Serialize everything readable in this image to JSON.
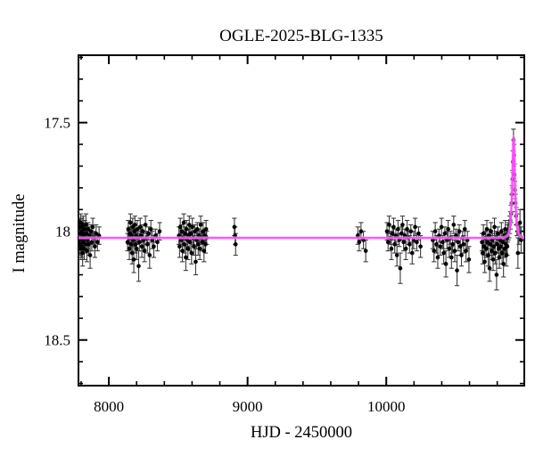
{
  "chart_data": {
    "type": "scatter",
    "title": "OGLE-2025-BLG-1335",
    "xlabel": "HJD - 2450000",
    "ylabel": "I magnitude",
    "xlim": [
      7781,
      10995
    ],
    "ylim_mag_top_to_bottom": [
      17.19,
      18.71
    ],
    "y_axis_inverted": true,
    "grid": false,
    "legend": "none",
    "x_major_ticks": [
      {
        "value": 8000,
        "label": "8000"
      },
      {
        "value": 9000,
        "label": "9000"
      },
      {
        "value": 10000,
        "label": "10000"
      }
    ],
    "x_minor_step": 200,
    "y_major_ticks": [
      {
        "value": 17.5,
        "label": "17.5"
      },
      {
        "value": 18,
        "label": "18"
      },
      {
        "value": 18.5,
        "label": "18.5"
      }
    ],
    "y_minor_step": 0.1,
    "baseline_mag": 18.03,
    "model": {
      "kind": "paczynski-point-lens",
      "t0": 10918,
      "tE_days": 13,
      "u0": 0.8,
      "baseline_mag": 18.03,
      "peak_mag": 17.57
    },
    "colors": {
      "background": "#ffffff",
      "frame": "#000000",
      "point": "#000000",
      "errorbar": "#3c3c3c",
      "model_core": "#ff46ff",
      "model_glow": "#ff9bff"
    },
    "points_format": [
      "hjd_minus_2450000",
      "i_mag",
      "mag_error"
    ],
    "points": [
      [
        7789,
        18.04,
        0.04
      ],
      [
        7791,
        17.98,
        0.04
      ],
      [
        7793,
        18.06,
        0.05
      ],
      [
        7795,
        18.01,
        0.03
      ],
      [
        7797,
        17.96,
        0.04
      ],
      [
        7799,
        18.08,
        0.05
      ],
      [
        7801,
        18.03,
        0.03
      ],
      [
        7803,
        18.0,
        0.04
      ],
      [
        7805,
        18.07,
        0.05
      ],
      [
        7807,
        17.98,
        0.04
      ],
      [
        7809,
        18.04,
        0.03
      ],
      [
        7811,
        18.1,
        0.06
      ],
      [
        7813,
        18.01,
        0.03
      ],
      [
        7815,
        17.97,
        0.04
      ],
      [
        7817,
        18.05,
        0.04
      ],
      [
        7820,
        18.02,
        0.03
      ],
      [
        7823,
        18.08,
        0.05
      ],
      [
        7826,
        17.99,
        0.04
      ],
      [
        7829,
        18.03,
        0.03
      ],
      [
        7832,
        18.06,
        0.04
      ],
      [
        7835,
        17.97,
        0.05
      ],
      [
        7838,
        18.01,
        0.03
      ],
      [
        7842,
        18.09,
        0.05
      ],
      [
        7846,
        18.04,
        0.04
      ],
      [
        7850,
        17.99,
        0.03
      ],
      [
        7855,
        18.06,
        0.05
      ],
      [
        7860,
        18.02,
        0.04
      ],
      [
        7865,
        18.11,
        0.06
      ],
      [
        7871,
        18.0,
        0.03
      ],
      [
        7877,
        18.05,
        0.04
      ],
      [
        7884,
        17.98,
        0.04
      ],
      [
        7891,
        18.03,
        0.03
      ],
      [
        7899,
        18.07,
        0.05
      ],
      [
        7908,
        18.01,
        0.04
      ],
      [
        7918,
        18.05,
        0.04
      ],
      [
        7930,
        18.02,
        0.04
      ],
      [
        8135,
        18.05,
        0.04
      ],
      [
        8140,
        17.99,
        0.04
      ],
      [
        8144,
        18.03,
        0.03
      ],
      [
        8148,
        18.08,
        0.05
      ],
      [
        8152,
        18.01,
        0.03
      ],
      [
        8156,
        17.96,
        0.04
      ],
      [
        8160,
        18.06,
        0.04
      ],
      [
        8164,
        18.02,
        0.03
      ],
      [
        8168,
        18.1,
        0.05
      ],
      [
        8172,
        17.98,
        0.04
      ],
      [
        8176,
        18.04,
        0.03
      ],
      [
        8180,
        18.13,
        0.06
      ],
      [
        8184,
        18.0,
        0.03
      ],
      [
        8188,
        17.97,
        0.04
      ],
      [
        8192,
        18.06,
        0.04
      ],
      [
        8196,
        18.02,
        0.03
      ],
      [
        8200,
        18.08,
        0.05
      ],
      [
        8205,
        17.99,
        0.04
      ],
      [
        8210,
        18.03,
        0.03
      ],
      [
        8215,
        18.16,
        0.07
      ],
      [
        8220,
        18.05,
        0.04
      ],
      [
        8226,
        17.98,
        0.04
      ],
      [
        8232,
        18.02,
        0.03
      ],
      [
        8238,
        18.07,
        0.05
      ],
      [
        8244,
        18.0,
        0.03
      ],
      [
        8250,
        18.04,
        0.04
      ],
      [
        8257,
        18.09,
        0.05
      ],
      [
        8264,
        17.97,
        0.04
      ],
      [
        8271,
        18.03,
        0.03
      ],
      [
        8278,
        18.06,
        0.04
      ],
      [
        8286,
        18.01,
        0.03
      ],
      [
        8294,
        18.11,
        0.06
      ],
      [
        8303,
        17.99,
        0.04
      ],
      [
        8313,
        18.04,
        0.04
      ],
      [
        8324,
        18.07,
        0.05
      ],
      [
        8336,
        18.02,
        0.03
      ],
      [
        8350,
        18.05,
        0.04
      ],
      [
        8366,
        18.0,
        0.04
      ],
      [
        8505,
        18.02,
        0.04
      ],
      [
        8510,
        18.07,
        0.05
      ],
      [
        8515,
        17.98,
        0.04
      ],
      [
        8520,
        18.04,
        0.03
      ],
      [
        8525,
        18.0,
        0.03
      ],
      [
        8530,
        18.09,
        0.05
      ],
      [
        8535,
        18.03,
        0.03
      ],
      [
        8540,
        17.96,
        0.04
      ],
      [
        8545,
        18.06,
        0.04
      ],
      [
        8550,
        18.01,
        0.03
      ],
      [
        8555,
        18.12,
        0.06
      ],
      [
        8560,
        17.99,
        0.04
      ],
      [
        8565,
        18.04,
        0.03
      ],
      [
        8570,
        18.08,
        0.05
      ],
      [
        8575,
        18.02,
        0.03
      ],
      [
        8580,
        17.97,
        0.04
      ],
      [
        8585,
        18.05,
        0.04
      ],
      [
        8590,
        18.01,
        0.03
      ],
      [
        8596,
        18.1,
        0.05
      ],
      [
        8602,
        17.98,
        0.04
      ],
      [
        8608,
        18.03,
        0.03
      ],
      [
        8614,
        18.07,
        0.04
      ],
      [
        8620,
        18.0,
        0.03
      ],
      [
        8626,
        18.14,
        0.06
      ],
      [
        8632,
        18.04,
        0.04
      ],
      [
        8638,
        17.99,
        0.03
      ],
      [
        8644,
        18.06,
        0.05
      ],
      [
        8650,
        18.02,
        0.03
      ],
      [
        8656,
        18.08,
        0.05
      ],
      [
        8662,
        17.97,
        0.04
      ],
      [
        8668,
        18.03,
        0.03
      ],
      [
        8674,
        18.05,
        0.04
      ],
      [
        8680,
        18.0,
        0.04
      ],
      [
        8686,
        18.09,
        0.05
      ],
      [
        8692,
        18.02,
        0.03
      ],
      [
        8697,
        18.06,
        0.04
      ],
      [
        8701,
        17.99,
        0.04
      ],
      [
        8705,
        18.03,
        0.03
      ],
      [
        8905,
        17.98,
        0.04
      ],
      [
        8910,
        18.02,
        0.04
      ],
      [
        8914,
        18.06,
        0.05
      ],
      [
        9795,
        18.02,
        0.04
      ],
      [
        9805,
        18.05,
        0.04
      ],
      [
        9818,
        18.0,
        0.04
      ],
      [
        9835,
        18.04,
        0.04
      ],
      [
        9852,
        18.09,
        0.05
      ],
      [
        10005,
        18.0,
        0.04
      ],
      [
        10013,
        18.05,
        0.04
      ],
      [
        10021,
        17.97,
        0.04
      ],
      [
        10029,
        18.03,
        0.03
      ],
      [
        10037,
        18.08,
        0.05
      ],
      [
        10045,
        18.01,
        0.03
      ],
      [
        10053,
        17.98,
        0.04
      ],
      [
        10061,
        18.06,
        0.04
      ],
      [
        10069,
        18.02,
        0.03
      ],
      [
        10077,
        18.11,
        0.05
      ],
      [
        10085,
        17.99,
        0.04
      ],
      [
        10093,
        18.04,
        0.03
      ],
      [
        10101,
        18.17,
        0.07
      ],
      [
        10109,
        18.01,
        0.03
      ],
      [
        10117,
        17.97,
        0.04
      ],
      [
        10125,
        18.05,
        0.04
      ],
      [
        10133,
        18.02,
        0.03
      ],
      [
        10141,
        18.08,
        0.05
      ],
      [
        10150,
        17.99,
        0.04
      ],
      [
        10159,
        18.03,
        0.03
      ],
      [
        10168,
        18.06,
        0.04
      ],
      [
        10177,
        18.0,
        0.03
      ],
      [
        10187,
        18.1,
        0.05
      ],
      [
        10197,
        18.04,
        0.04
      ],
      [
        10208,
        17.98,
        0.04
      ],
      [
        10220,
        18.05,
        0.04
      ],
      [
        10233,
        18.01,
        0.03
      ],
      [
        10247,
        18.07,
        0.05
      ],
      [
        10335,
        18.04,
        0.04
      ],
      [
        10344,
        18.09,
        0.05
      ],
      [
        10353,
        18.0,
        0.04
      ],
      [
        10362,
        18.06,
        0.04
      ],
      [
        10371,
        18.12,
        0.05
      ],
      [
        10380,
        18.02,
        0.03
      ],
      [
        10389,
        18.07,
        0.04
      ],
      [
        10398,
        17.98,
        0.04
      ],
      [
        10406,
        18.05,
        0.03
      ],
      [
        10414,
        18.1,
        0.05
      ],
      [
        10422,
        18.01,
        0.03
      ],
      [
        10430,
        18.15,
        0.06
      ],
      [
        10438,
        18.04,
        0.04
      ],
      [
        10446,
        17.99,
        0.04
      ],
      [
        10454,
        18.08,
        0.04
      ],
      [
        10462,
        18.03,
        0.03
      ],
      [
        10470,
        18.12,
        0.05
      ],
      [
        10478,
        18.06,
        0.04
      ],
      [
        10486,
        17.97,
        0.04
      ],
      [
        10494,
        18.09,
        0.05
      ],
      [
        10502,
        18.02,
        0.03
      ],
      [
        10510,
        18.18,
        0.07
      ],
      [
        10518,
        18.05,
        0.04
      ],
      [
        10526,
        18.0,
        0.03
      ],
      [
        10534,
        18.07,
        0.04
      ],
      [
        10542,
        18.11,
        0.05
      ],
      [
        10550,
        18.03,
        0.03
      ],
      [
        10558,
        18.06,
        0.04
      ],
      [
        10566,
        17.99,
        0.04
      ],
      [
        10575,
        18.09,
        0.05
      ],
      [
        10585,
        18.04,
        0.04
      ],
      [
        10596,
        18.13,
        0.06
      ],
      [
        10690,
        18.05,
        0.04
      ],
      [
        10695,
        18.1,
        0.05
      ],
      [
        10700,
        18.01,
        0.04
      ],
      [
        10705,
        18.07,
        0.04
      ],
      [
        10710,
        18.14,
        0.05
      ],
      [
        10715,
        18.03,
        0.03
      ],
      [
        10720,
        18.08,
        0.04
      ],
      [
        10725,
        17.99,
        0.04
      ],
      [
        10730,
        18.05,
        0.03
      ],
      [
        10735,
        18.11,
        0.05
      ],
      [
        10740,
        18.02,
        0.03
      ],
      [
        10745,
        18.17,
        0.06
      ],
      [
        10750,
        18.06,
        0.04
      ],
      [
        10755,
        18.0,
        0.04
      ],
      [
        10760,
        18.09,
        0.04
      ],
      [
        10765,
        18.04,
        0.03
      ],
      [
        10770,
        18.13,
        0.05
      ],
      [
        10775,
        18.07,
        0.04
      ],
      [
        10780,
        17.98,
        0.04
      ],
      [
        10785,
        18.1,
        0.05
      ],
      [
        10790,
        18.03,
        0.03
      ],
      [
        10795,
        18.2,
        0.07
      ],
      [
        10800,
        18.06,
        0.04
      ],
      [
        10805,
        18.01,
        0.03
      ],
      [
        10810,
        18.08,
        0.04
      ],
      [
        10815,
        18.12,
        0.05
      ],
      [
        10820,
        18.04,
        0.03
      ],
      [
        10825,
        18.07,
        0.04
      ],
      [
        10830,
        18.0,
        0.04
      ],
      [
        10835,
        18.1,
        0.05
      ],
      [
        10840,
        18.05,
        0.04
      ],
      [
        10845,
        18.15,
        0.06
      ],
      [
        10850,
        18.02,
        0.03
      ],
      [
        10854,
        18.08,
        0.04
      ],
      [
        10858,
        17.99,
        0.04
      ],
      [
        10862,
        18.06,
        0.04
      ],
      [
        10866,
        18.11,
        0.05
      ],
      [
        10869,
        18.03,
        0.04
      ],
      [
        10872,
        18.07,
        0.04
      ],
      [
        10875,
        18.01,
        0.04
      ],
      [
        10880,
        18.0,
        0.04
      ],
      [
        10885,
        17.99,
        0.04
      ],
      [
        10890,
        17.97,
        0.04
      ],
      [
        10895,
        17.95,
        0.04
      ],
      [
        10900,
        17.92,
        0.04
      ],
      [
        10904,
        17.87,
        0.04
      ],
      [
        10907,
        17.83,
        0.04
      ],
      [
        10910,
        17.76,
        0.04
      ],
      [
        10913,
        17.68,
        0.05
      ],
      [
        10917,
        17.58,
        0.05
      ],
      [
        10921,
        17.65,
        0.05
      ],
      [
        10924,
        17.74,
        0.05
      ],
      [
        10927,
        17.81,
        0.04
      ],
      [
        10931,
        17.87,
        0.04
      ],
      [
        10936,
        17.93,
        0.04
      ],
      [
        10942,
        17.97,
        0.05
      ],
      [
        10949,
        18.1,
        0.07
      ],
      [
        10956,
        18.01,
        0.05
      ],
      [
        10964,
        17.96,
        0.06
      ],
      [
        10972,
        18.04,
        0.06
      ]
    ]
  }
}
